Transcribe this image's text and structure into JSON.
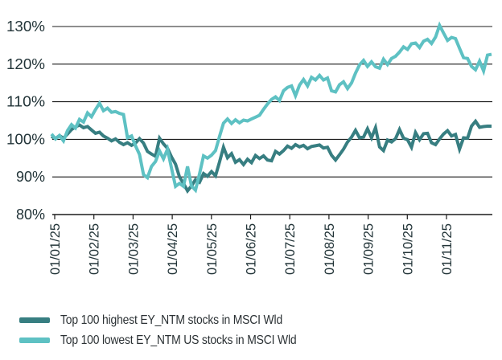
{
  "chart_data": {
    "type": "line",
    "title": "",
    "xlabel": "",
    "ylabel": "",
    "grid": true,
    "legend_position": "bottom-left",
    "background_color": "#ffffff",
    "gridline_color": "#1c1c1c",
    "tick_label_color": "#223438",
    "legend_text_color": "#2b3134",
    "ylim": [
      80,
      132.5
    ],
    "y_ticks": [
      {
        "value": 130,
        "label": "130%"
      },
      {
        "value": 120,
        "label": "120%"
      },
      {
        "value": 110,
        "label": "110%"
      },
      {
        "value": 100,
        "label": "100%"
      },
      {
        "value": 90,
        "label": "90%"
      },
      {
        "value": 80,
        "label": "80%"
      }
    ],
    "x_ticks": [
      "01/01/25",
      "01/02/25",
      "01/03/25",
      "01/04/25",
      "01/05/25",
      "01/06/25",
      "01/07/25",
      "01/08/25",
      "01/09/25",
      "01/10/25",
      "01/11/25"
    ],
    "series": [
      {
        "name": "Top 100 highest EY_NTM stocks in MSCI Wld",
        "color": "#377e81",
        "values": [
          100.8,
          100.2,
          101.0,
          100.3,
          101.4,
          102.6,
          103.3,
          103.8,
          103.1,
          103.4,
          102.5,
          101.6,
          101.9,
          100.9,
          100.3,
          99.6,
          100.1,
          99.2,
          98.6,
          99.1,
          98.4,
          99.0,
          100.2,
          99.0,
          96.8,
          96.1,
          95.5,
          100.3,
          98.8,
          97.6,
          95.3,
          93.4,
          90.0,
          88.3,
          86.3,
          87.6,
          89.3,
          88.6,
          90.9,
          90.2,
          91.4,
          90.3,
          94.0,
          97.9,
          95.1,
          96.2,
          93.9,
          94.6,
          93.3,
          94.7,
          93.8,
          95.7,
          94.9,
          95.6,
          94.5,
          94.3,
          96.8,
          96.1,
          97.0,
          98.2,
          97.6,
          98.6,
          98.0,
          98.4,
          97.5,
          98.1,
          98.3,
          98.5,
          97.7,
          97.9,
          95.8,
          94.5,
          95.9,
          97.4,
          99.3,
          100.6,
          102.4,
          100.4,
          100.6,
          102.8,
          100.4,
          103.1,
          98.0,
          97.0,
          99.8,
          99.3,
          100.2,
          102.6,
          100.3,
          99.9,
          97.9,
          101.8,
          99.9,
          101.5,
          101.6,
          99.1,
          98.6,
          100.1,
          101.4,
          102.3,
          100.9,
          101.3,
          97.4,
          100.4,
          100.3,
          103.5,
          104.8,
          103.2,
          103.4,
          103.5,
          103.5
        ]
      },
      {
        "name": "Top 100 lowest EY_NTM US stocks in MSCI Wld",
        "color": "#5ec1c3",
        "values": [
          101.4,
          100.1,
          101.0,
          99.6,
          102.3,
          103.9,
          103.0,
          105.3,
          104.6,
          107.0,
          106.0,
          107.9,
          109.6,
          107.6,
          108.3,
          107.2,
          107.4,
          106.9,
          106.6,
          100.4,
          100.9,
          98.3,
          96.0,
          90.6,
          89.8,
          92.8,
          94.1,
          96.9,
          94.8,
          97.4,
          92.3,
          87.5,
          88.3,
          87.5,
          92.8,
          87.6,
          86.5,
          90.8,
          95.6,
          95.0,
          95.8,
          97.0,
          100.8,
          104.3,
          105.4,
          104.2,
          105.2,
          104.4,
          105.1,
          104.9,
          105.4,
          105.9,
          106.4,
          108.0,
          109.4,
          110.6,
          111.3,
          110.3,
          112.9,
          113.8,
          114.2,
          111.6,
          114.4,
          115.9,
          114.2,
          116.5,
          115.8,
          117.0,
          115.8,
          116.3,
          112.9,
          112.6,
          114.5,
          115.3,
          113.5,
          115.0,
          117.6,
          119.8,
          121.0,
          119.4,
          120.6,
          119.3,
          118.9,
          121.3,
          119.9,
          121.5,
          122.1,
          123.2,
          124.6,
          123.9,
          125.4,
          125.6,
          124.4,
          126.1,
          126.6,
          125.5,
          127.2,
          130.3,
          128.3,
          126.3,
          127.1,
          126.8,
          124.2,
          121.7,
          121.5,
          119.4,
          118.5,
          120.8,
          118.2,
          122.4,
          122.6
        ]
      }
    ]
  }
}
